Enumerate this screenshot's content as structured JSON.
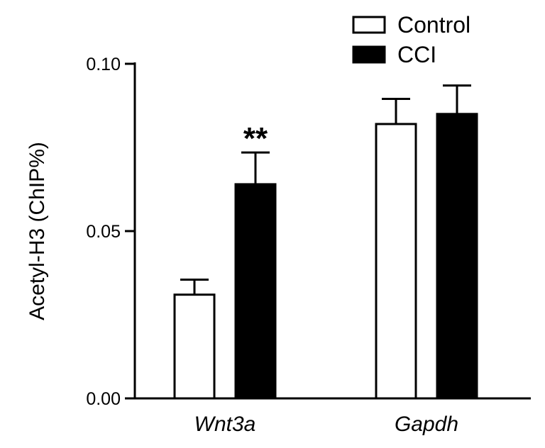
{
  "chart_data": {
    "type": "bar",
    "title": "",
    "xlabel": "",
    "ylabel": "Acetyl-H3 (ChIP%)",
    "categories": [
      "Wnt3a",
      "Gapdh"
    ],
    "series": [
      {
        "name": "Control",
        "fill": "#ffffff",
        "stroke": "#000000",
        "values": [
          0.031,
          0.082
        ],
        "errors": [
          0.0045,
          0.0075
        ]
      },
      {
        "name": "CCI",
        "fill": "#000000",
        "stroke": "#000000",
        "values": [
          0.064,
          0.085
        ],
        "errors": [
          0.0095,
          0.0085
        ]
      }
    ],
    "ylim": [
      0,
      0.1
    ],
    "yticks": [
      "0.00",
      "0.05",
      "0.10"
    ],
    "grid": false,
    "legend_position": "top-right",
    "annotations": [
      {
        "text": "**",
        "category": "Wnt3a",
        "series": "CCI"
      }
    ]
  }
}
